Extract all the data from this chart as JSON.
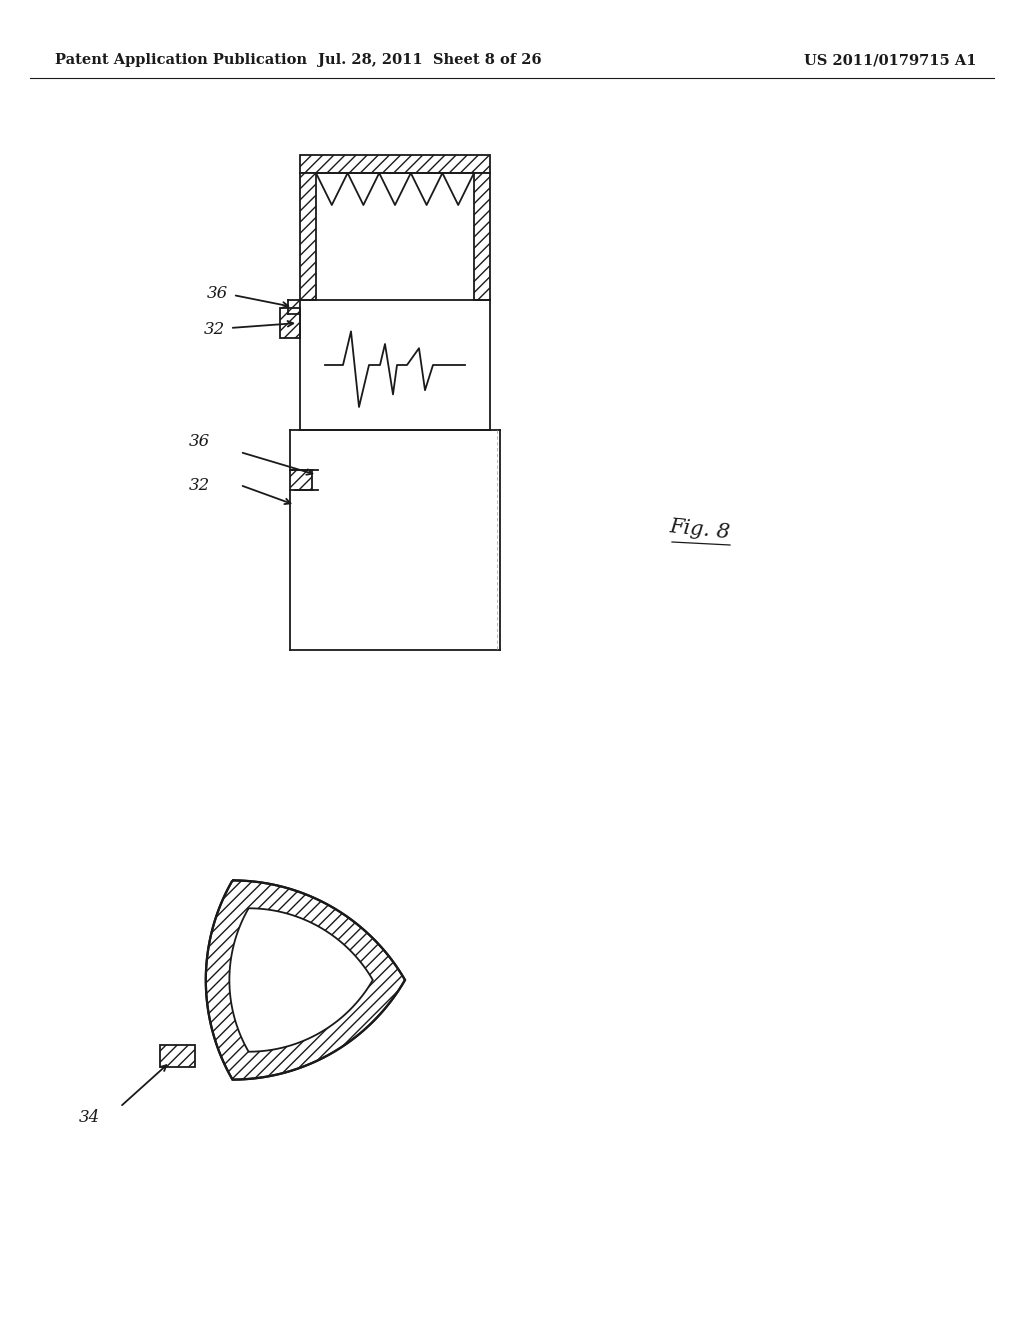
{
  "header_left": "Patent Application Publication",
  "header_mid": "Jul. 28, 2011  Sheet 8 of 26",
  "header_right": "US 2011/0179715 A1",
  "fig_label": "Fig. 8",
  "label_36_top": "36",
  "label_32_top": "32",
  "label_36_bot": "36",
  "label_32_bot": "32",
  "label_34": "34",
  "bg_color": "#ffffff",
  "line_color": "#1a1a1a",
  "line_width": 1.3
}
